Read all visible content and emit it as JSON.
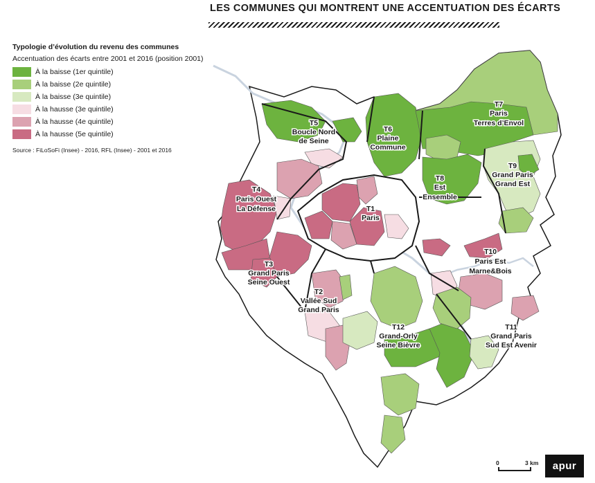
{
  "title": "LES COMMUNES QUI MONTRENT UNE ACCENTUATION DES ÉCARTS",
  "legend": {
    "title": "Typologie d’évolution du revenu des communes",
    "subtitle": "Accentuation des écarts entre 2001 et 2016 (position 2001)",
    "items": [
      {
        "label": "À la baisse (1er quintile)",
        "color": "#6db33f"
      },
      {
        "label": "À la baisse (2e quintile)",
        "color": "#a8cf7b"
      },
      {
        "label": "À la baisse (3e quintile)",
        "color": "#d7e9c0"
      },
      {
        "label": "À la hausse (3e quintile)",
        "color": "#f6dde3"
      },
      {
        "label": "À la hausse (4e quintile)",
        "color": "#dca2b0"
      },
      {
        "label": "À la hausse (5e quintile)",
        "color": "#c96b83"
      }
    ],
    "source": "Source : FiLoSoFi (Insee) - 2016, RFL (Insee) - 2001 et 2016"
  },
  "territories": [
    {
      "code": "T1",
      "name_lines": [
        "Paris"
      ]
    },
    {
      "code": "T2",
      "name_lines": [
        "Vallée Sud",
        "Grand Paris"
      ]
    },
    {
      "code": "T3",
      "name_lines": [
        "Grand Paris",
        "Seine Ouest"
      ]
    },
    {
      "code": "T4",
      "name_lines": [
        "Paris Ouest",
        "La Défense"
      ]
    },
    {
      "code": "T5",
      "name_lines": [
        "Boucle Nord",
        "de Seine"
      ]
    },
    {
      "code": "T6",
      "name_lines": [
        "Plaine",
        "Commune"
      ]
    },
    {
      "code": "T7",
      "name_lines": [
        "Paris",
        "Terres d’Envol"
      ]
    },
    {
      "code": "T8",
      "name_lines": [
        "Est",
        "Ensemble"
      ]
    },
    {
      "code": "T9",
      "name_lines": [
        "Grand Paris",
        "Grand Est"
      ]
    },
    {
      "code": "T10",
      "name_lines": [
        "Paris Est",
        "Marne&Bois"
      ]
    },
    {
      "code": "T11",
      "name_lines": [
        "Grand Paris",
        "Sud Est Avenir"
      ]
    },
    {
      "code": "T12",
      "name_lines": [
        "Grand-Orly",
        "Seine Bièvre"
      ]
    }
  ],
  "scale": {
    "start": "0",
    "end": "3 km"
  },
  "logo": "apur",
  "colors": {
    "boundary": "#1a1a1a",
    "commune_line": "#9a9a9a",
    "water": "#c9d3df",
    "background": "#ffffff"
  }
}
